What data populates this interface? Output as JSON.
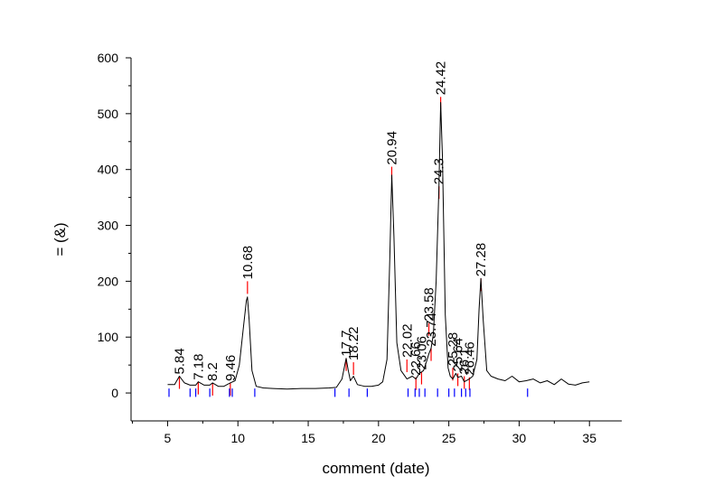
{
  "chart_data": {
    "type": "line",
    "title": "",
    "xlabel": "comment (date)",
    "ylabel": "= (&)",
    "xlim": [
      2.4,
      37.3
    ],
    "ylim": [
      -50,
      600
    ],
    "xticks": [
      5,
      10,
      15,
      20,
      25,
      30,
      35
    ],
    "xtick_labels": [
      "5",
      "10",
      "15",
      "20",
      "25",
      "30",
      "35"
    ],
    "yticks": [
      0,
      100,
      200,
      300,
      400,
      500,
      600
    ],
    "ytick_labels": [
      "0",
      "100",
      "200",
      "300",
      "400",
      "500",
      "600"
    ],
    "grid": false,
    "legend": "none",
    "series": [
      {
        "color": "#000000",
        "x": [
          5.0,
          5.5,
          5.84,
          6.2,
          6.6,
          7.0,
          7.18,
          7.6,
          8.0,
          8.2,
          8.6,
          9.0,
          9.46,
          9.8,
          10.1,
          10.4,
          10.6,
          10.68,
          10.8,
          11.0,
          11.3,
          11.8,
          12.5,
          13.5,
          14.5,
          15.5,
          16.5,
          17.0,
          17.4,
          17.7,
          17.85,
          18.0,
          18.22,
          18.5,
          19.0,
          19.5,
          20.0,
          20.3,
          20.6,
          20.8,
          20.94,
          21.1,
          21.3,
          21.6,
          22.02,
          22.4,
          22.66,
          22.9,
          23.2,
          23.4,
          23.58,
          23.74,
          23.9,
          24.1,
          24.3,
          24.42,
          24.55,
          24.75,
          24.95,
          25.1,
          25.28,
          25.5,
          25.64,
          25.9,
          26.1,
          26.46,
          26.7,
          27.0,
          27.15,
          27.28,
          27.45,
          27.7,
          28.0,
          28.5,
          29.0,
          29.5,
          30.0,
          30.5,
          31.0,
          31.5,
          32.0,
          32.5,
          33.0,
          33.5,
          34.0,
          34.5,
          35.0
        ],
        "y": [
          15,
          15,
          30,
          18,
          14,
          14,
          20,
          14,
          14,
          18,
          12,
          12,
          18,
          22,
          50,
          120,
          165,
          172,
          130,
          40,
          12,
          9,
          8,
          7,
          8,
          8,
          9,
          10,
          25,
          62,
          40,
          22,
          30,
          15,
          12,
          12,
          14,
          20,
          60,
          240,
          390,
          280,
          90,
          40,
          25,
          30,
          25,
          35,
          40,
          55,
          70,
          80,
          105,
          200,
          370,
          520,
          420,
          140,
          45,
          30,
          25,
          35,
          28,
          30,
          20,
          25,
          30,
          60,
          150,
          205,
          130,
          40,
          30,
          25,
          22,
          30,
          20,
          22,
          25,
          18,
          22,
          15,
          25,
          16,
          14,
          18,
          20
        ]
      }
    ],
    "peaks": [
      {
        "label": "5.84",
        "x": 5.84,
        "y": 30
      },
      {
        "label": "7.18",
        "x": 7.18,
        "y": 20
      },
      {
        "label": "8.2",
        "x": 8.2,
        "y": 18
      },
      {
        "label": "9.46",
        "x": 9.46,
        "y": 18
      },
      {
        "label": "10.68",
        "x": 10.68,
        "y": 200
      },
      {
        "label": "17.7",
        "x": 17.7,
        "y": 62
      },
      {
        "label": "18.22",
        "x": 18.22,
        "y": 55
      },
      {
        "label": "20.94",
        "x": 20.94,
        "y": 405
      },
      {
        "label": "22.02",
        "x": 22.02,
        "y": 60
      },
      {
        "label": "22.66",
        "x": 22.66,
        "y": 28
      },
      {
        "label": "23.06",
        "x": 23.06,
        "y": 38
      },
      {
        "label": "23.58",
        "x": 23.58,
        "y": 125
      },
      {
        "label": "23.74",
        "x": 23.74,
        "y": 80
      },
      {
        "label": "24.3",
        "x": 24.3,
        "y": 370
      },
      {
        "label": "24.42",
        "x": 24.42,
        "y": 530
      },
      {
        "label": "25.28",
        "x": 25.28,
        "y": 45
      },
      {
        "label": "25.64",
        "x": 25.64,
        "y": 35
      },
      {
        "label": "26.1",
        "x": 26.1,
        "y": 30
      },
      {
        "label": "26.46",
        "x": 26.46,
        "y": 28
      },
      {
        "label": "27.28",
        "x": 27.28,
        "y": 205
      }
    ],
    "peak_marker_color": "#ff0000",
    "baseline_markers": [
      5.1,
      6.6,
      7.0,
      8.0,
      9.4,
      9.6,
      11.2,
      16.9,
      17.9,
      19.2,
      22.1,
      22.6,
      22.9,
      23.3,
      24.2,
      25.0,
      25.4,
      25.9,
      26.2,
      26.5,
      30.6
    ],
    "baseline_marker_color": "#0000ff"
  }
}
